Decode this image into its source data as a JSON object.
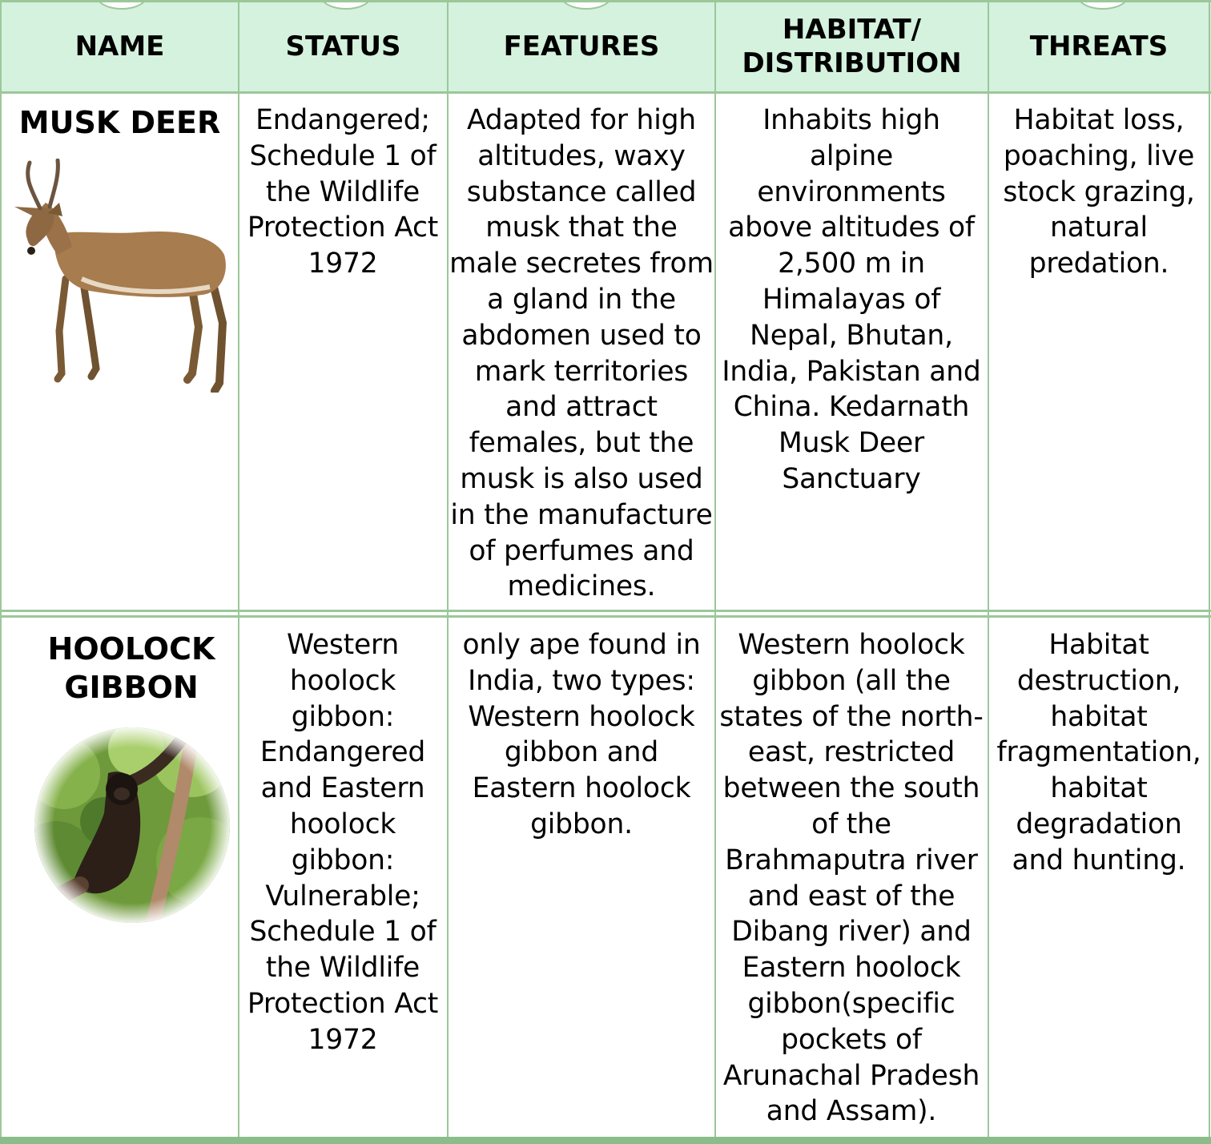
{
  "headers": {
    "name": "NAME",
    "status": "STATUS",
    "features": "FEATURES",
    "habitat": "HABITAT/ DISTRIBUTION",
    "threats": "THREATS"
  },
  "rows": [
    {
      "name": "MUSK DEER",
      "image_icon": "deer-image",
      "status": "Endangered; Schedule 1 of the Wildlife Protection Act 1972",
      "features": "Adapted for high altitudes, waxy substance called musk that the male secretes from a gland in the abdomen used to mark territories and attract females, but the musk is also used in the manufacture of perfumes and medicines.",
      "habitat": "Inhabits high alpine environments above altitudes of 2,500 m in Himalayas of Nepal, Bhutan, India, Pakistan and China. Kedarnath Musk Deer Sanctuary",
      "threats": "Habitat loss, poaching, live stock grazing, natural predation."
    },
    {
      "name": "HOOLOCK GIBBON",
      "image_icon": "gibbon-image",
      "status": "Western hoolock gibbon: Endangered and Eastern hoolock gibbon: Vulnerable; Schedule 1 of the Wildlife Protection Act 1972",
      "features": "only ape found in India, two types: Western hoolock gibbon and Eastern hoolock gibbon.",
      "habitat": "Western hoolock gibbon (all the states of the north-east, restricted between the south of the Brahmaputra river and east of the Dibang river) and Eastern hoolock gibbon(specific pockets of Arunachal Pradesh and Assam).",
      "threats": "Habitat destruction, habitat fragmentation, habitat degradation and hunting."
    }
  ],
  "colors": {
    "header_bg": "#d4f2dd",
    "border": "#9cc79a"
  }
}
